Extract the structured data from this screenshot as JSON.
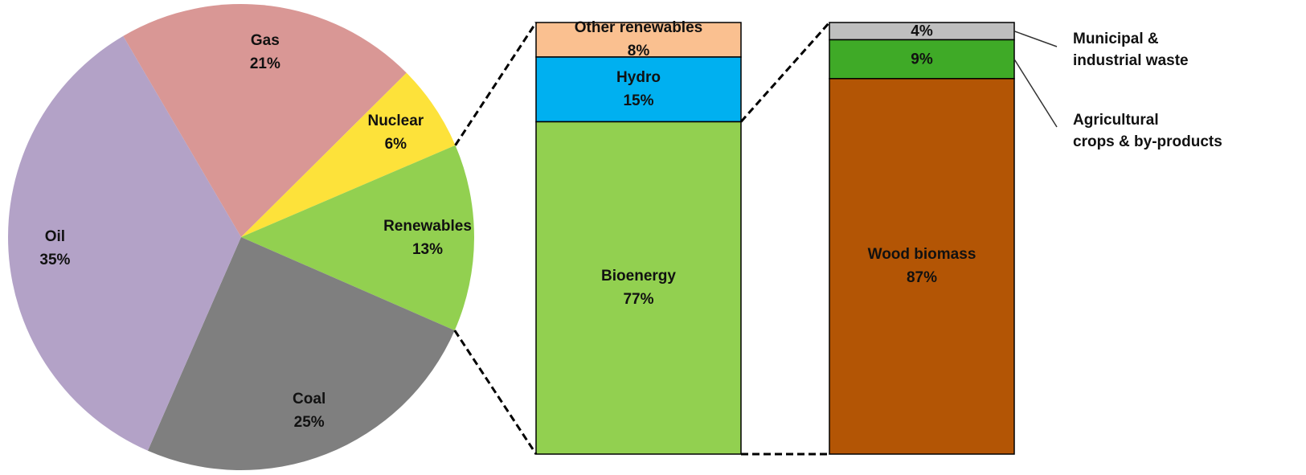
{
  "chart_data": [
    {
      "type": "pie",
      "categories": [
        "Gas",
        "Nuclear",
        "Renewables",
        "Coal",
        "Oil"
      ],
      "values": [
        21,
        6,
        13,
        25,
        35
      ],
      "value_labels": [
        "21%",
        "6%",
        "13%",
        "25%",
        "35%"
      ],
      "colors": [
        "#d99795",
        "#fde23a",
        "#92d050",
        "#7f7f7f",
        "#b3a2c7"
      ]
    },
    {
      "type": "stacked-bar",
      "categories": [
        "Other renewables",
        "Hydro",
        "Bioenergy"
      ],
      "values": [
        8,
        15,
        77
      ],
      "value_labels": [
        "8%",
        "15%",
        "77%"
      ],
      "colors": [
        "#fac090",
        "#00b0f0",
        "#92d050"
      ]
    },
    {
      "type": "stacked-bar",
      "categories": [
        "Municipal &\nindustrial waste",
        "Agricultural\ncrops & by-products",
        "Wood biomass"
      ],
      "values": [
        4,
        9,
        87
      ],
      "value_labels": [
        "4%",
        "9%",
        "87%"
      ],
      "colors": [
        "#bfbfbf",
        "#3faa27",
        "#b35505"
      ]
    }
  ]
}
